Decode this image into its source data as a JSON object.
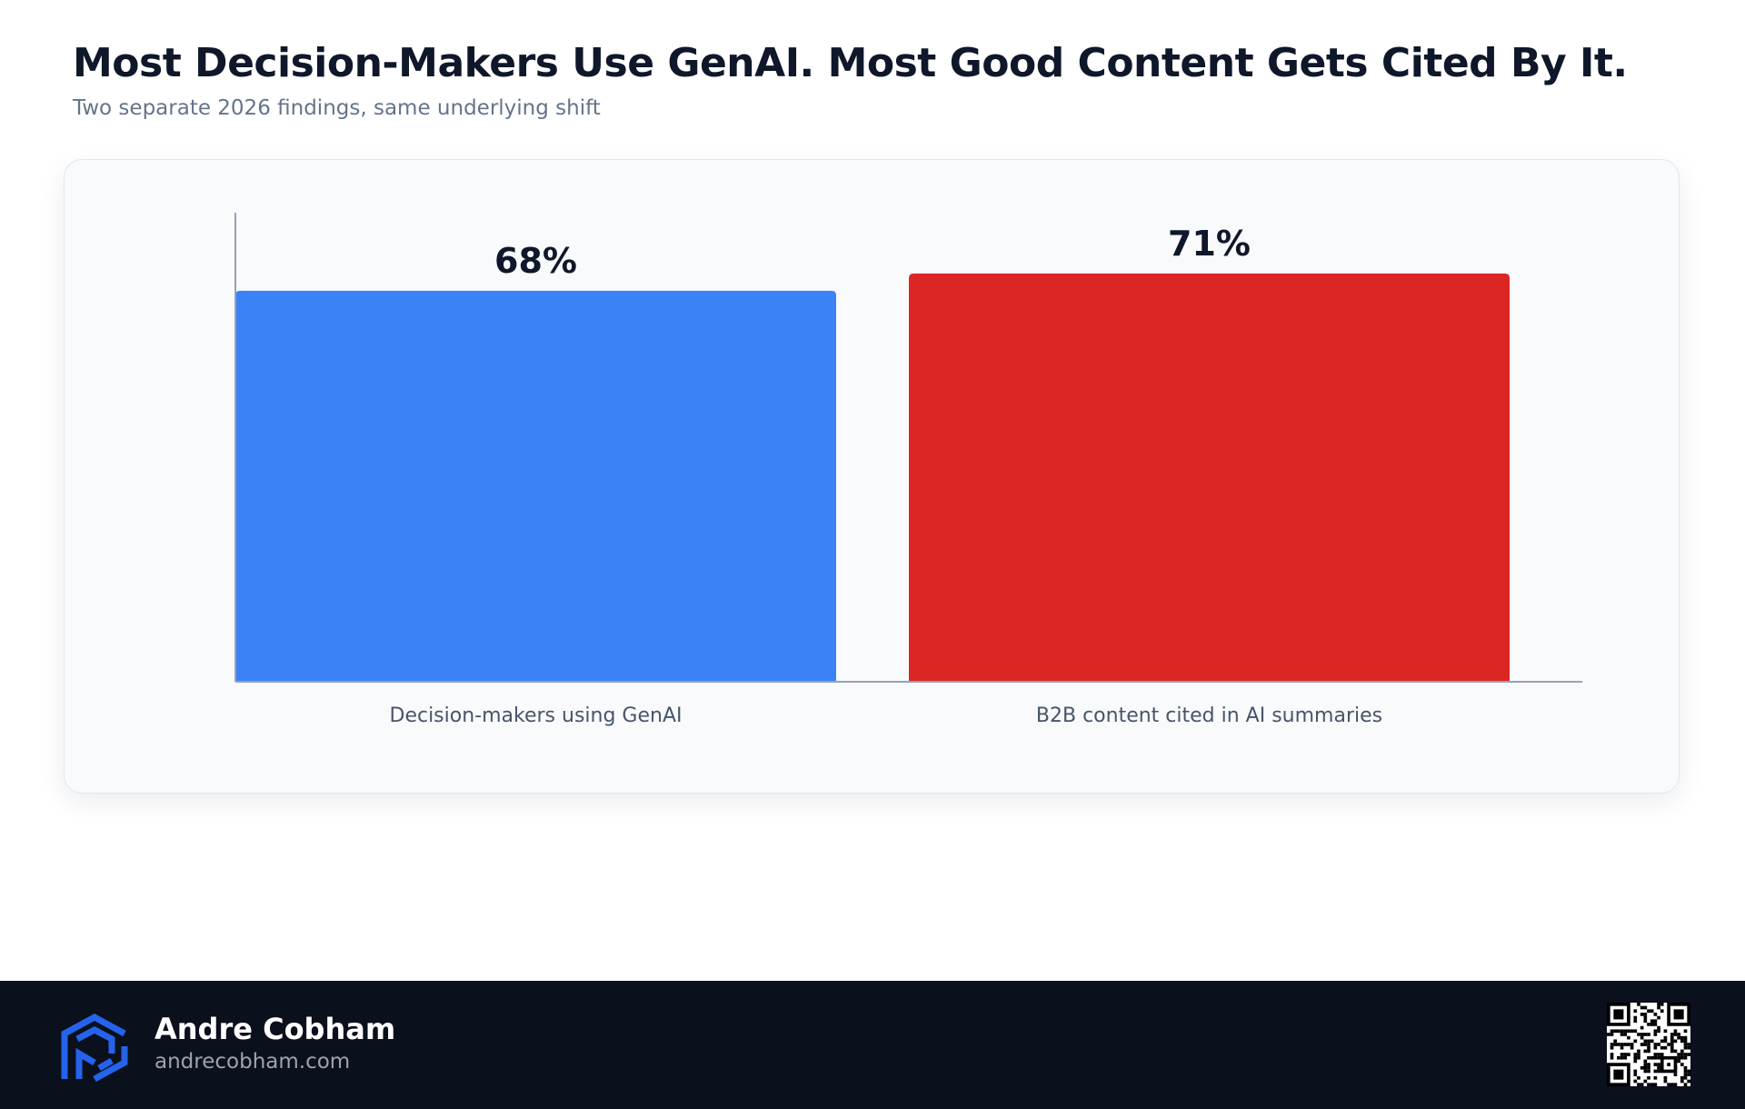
{
  "header": {
    "title": "Most Decision-Makers Use GenAI. Most Good Content Gets Cited By It.",
    "subtitle": "Two separate 2026 findings, same underlying shift"
  },
  "chart_data": {
    "type": "bar",
    "categories": [
      "Decision-makers using GenAI",
      "B2B content cited in AI summaries"
    ],
    "values": [
      68,
      71
    ],
    "value_labels": [
      "68%",
      "71%"
    ],
    "colors": [
      "#3b82f6",
      "#dc2626"
    ],
    "ylim": [
      0,
      80
    ],
    "grid": false,
    "legend": "none"
  },
  "footer": {
    "author_name": "Andre Cobham",
    "author_site": "andrecobham.com",
    "logo_icon": "cube-logo-icon",
    "qr_icon": "qr-code-icon",
    "logo_color": "#2563eb"
  },
  "colors": {
    "footer_bg": "#0b101d",
    "card_bg": "#f8fafc",
    "axis": "#94a3b8",
    "text_dark": "#0f172a",
    "text_muted": "#64748b"
  }
}
